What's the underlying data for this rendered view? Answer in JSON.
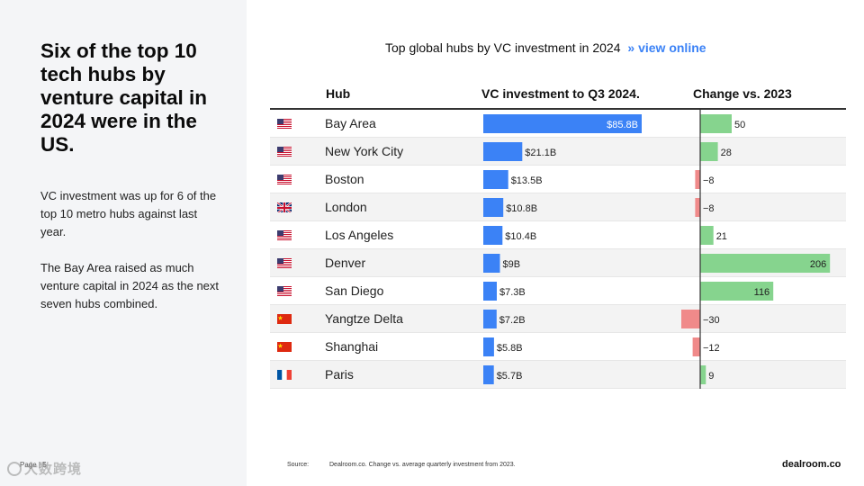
{
  "slide": {
    "headline": "Six of the top 10 tech hubs by venture capital in 2024 were in the US.",
    "paragraph_1": "VC investment was up for 6 of the top 10 metro hubs against last year.",
    "paragraph_2": "The Bay Area raised as much venture capital in 2024 as the next seven hubs combined.",
    "page_number": "Page | 5",
    "watermark": "大数跨境"
  },
  "chart_header": {
    "title": "Top global hubs by VC investment in 2024",
    "link_arrow": "»",
    "link_label": "view online"
  },
  "columns": {
    "hub": "Hub",
    "investment": "VC investment to Q3 2024.",
    "change": "Change vs. 2023"
  },
  "footer": {
    "source_label": "Source:",
    "source_text": "Dealroom.co. Change vs. average quarterly investment from 2023.",
    "brand": "dealroom.co"
  },
  "colors": {
    "investment_bar": "#3b82f6",
    "positive_change": "#86d48e",
    "negative_change": "#f08a8a"
  },
  "chart_data": {
    "type": "table",
    "title": "Top global hubs by VC investment in 2024",
    "investment_max": 85.8,
    "change_range": [
      -50,
      230
    ],
    "rows": [
      {
        "hub": "Bay Area",
        "country": "us",
        "investment": 85.8,
        "investment_label": "$85.8B",
        "change": 50,
        "change_label": "50"
      },
      {
        "hub": "New York City",
        "country": "us",
        "investment": 21.1,
        "investment_label": "$21.1B",
        "change": 28,
        "change_label": "28"
      },
      {
        "hub": "Boston",
        "country": "us",
        "investment": 13.5,
        "investment_label": "$13.5B",
        "change": -8,
        "change_label": "−8"
      },
      {
        "hub": "London",
        "country": "uk",
        "investment": 10.8,
        "investment_label": "$10.8B",
        "change": -8,
        "change_label": "−8"
      },
      {
        "hub": "Los Angeles",
        "country": "us",
        "investment": 10.4,
        "investment_label": "$10.4B",
        "change": 21,
        "change_label": "21"
      },
      {
        "hub": "Denver",
        "country": "us",
        "investment": 9.0,
        "investment_label": "$9B",
        "change": 206,
        "change_label": "206"
      },
      {
        "hub": "San Diego",
        "country": "us",
        "investment": 7.3,
        "investment_label": "$7.3B",
        "change": 116,
        "change_label": "116"
      },
      {
        "hub": "Yangtze Delta",
        "country": "cn",
        "investment": 7.2,
        "investment_label": "$7.2B",
        "change": -30,
        "change_label": "−30"
      },
      {
        "hub": "Shanghai",
        "country": "cn",
        "investment": 5.8,
        "investment_label": "$5.8B",
        "change": -12,
        "change_label": "−12"
      },
      {
        "hub": "Paris",
        "country": "fr",
        "investment": 5.7,
        "investment_label": "$5.7B",
        "change": 9,
        "change_label": "9"
      }
    ]
  }
}
